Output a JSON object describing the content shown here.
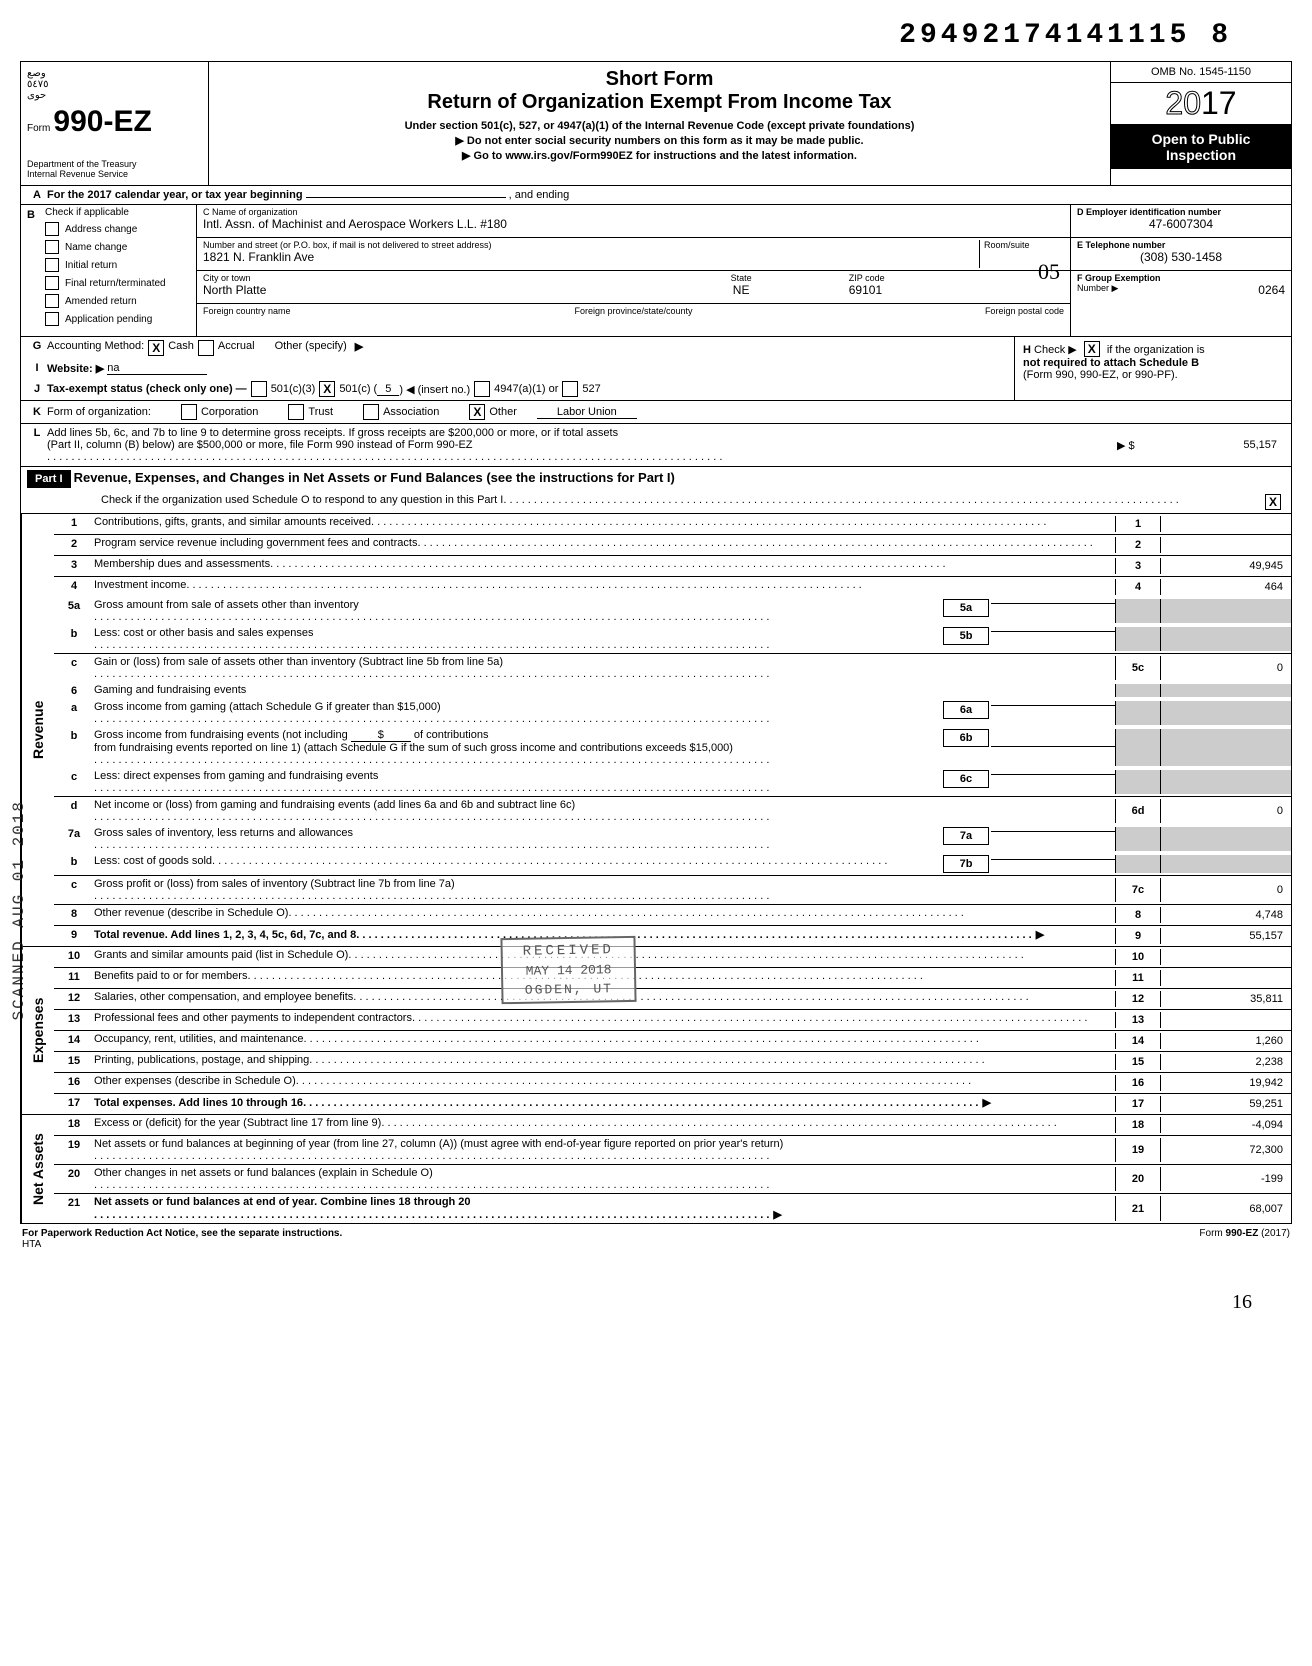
{
  "doc_id": "29492174141115 8",
  "form": {
    "number": "990-EZ",
    "prefix": "Form",
    "department": "Department of the Treasury",
    "irs": "Internal Revenue Service"
  },
  "title": {
    "line1": "Short Form",
    "line2": "Return of Organization Exempt From Income Tax",
    "note1": "Under section 501(c), 527, or 4947(a)(1) of the Internal Revenue Code (except private foundations)",
    "note2": "Do not enter social security numbers on this form as it may be made public.",
    "note3": "Go to www.irs.gov/Form990EZ for instructions and the latest information."
  },
  "right": {
    "omb": "OMB No. 1545-1150",
    "year_outline": "20",
    "year_bold": "17",
    "open1": "Open to Public",
    "open2": "Inspection"
  },
  "line_a": "For the 2017 calendar year, or tax year beginning",
  "line_a_end": ", and ending",
  "section_b": {
    "header": "Check if applicable",
    "items": [
      "Address change",
      "Name change",
      "Initial return",
      "Final return/terminated",
      "Amended return",
      "Application pending"
    ]
  },
  "section_c": {
    "name_label": "C  Name of organization",
    "name": "Intl. Assn. of Machinist and Aerospace Workers L.L. #180",
    "street_label": "Number and street (or P.O. box, if mail is not delivered to street address)",
    "room_label": "Room/suite",
    "street": "1821 N. Franklin Ave",
    "city_label": "City or town",
    "state_label": "State",
    "zip_label": "ZIP code",
    "city": "North Platte",
    "state": "NE",
    "zip": "69101",
    "foreign_country": "Foreign country name",
    "foreign_province": "Foreign province/state/county",
    "foreign_postal": "Foreign postal code",
    "handwritten": "05"
  },
  "section_d": {
    "ein_label": "D  Employer identification number",
    "ein": "47-6007304",
    "phone_label": "E  Telephone number",
    "phone": "(308) 530-1458",
    "group_label": "F  Group Exemption",
    "group_label2": "Number ▶",
    "group": "0264"
  },
  "line_g": {
    "label": "Accounting Method:",
    "opt1": "Cash",
    "opt2": "Accrual",
    "opt3": "Other (specify)"
  },
  "line_h": {
    "text1": "Check ▶",
    "text2": "if the organization is",
    "text3": "not required to attach Schedule B",
    "text4": "(Form 990, 990-EZ, or 990-PF)."
  },
  "line_i": {
    "label": "Website: ▶",
    "value": "na"
  },
  "line_j": {
    "label": "Tax-exempt status (check only one) —",
    "opt1": "501(c)(3)",
    "opt2": "501(c) (",
    "opt2_val": "5",
    "opt2_end": ") ◀ (insert no.)",
    "opt3": "4947(a)(1) or",
    "opt4": "527"
  },
  "line_k": {
    "label": "Form of organization:",
    "opt1": "Corporation",
    "opt2": "Trust",
    "opt3": "Association",
    "opt4": "Other",
    "value": "Labor Union"
  },
  "line_l": {
    "text1": "Add lines 5b, 6c, and 7b to line 9 to determine gross receipts. If gross receipts are $200,000 or more, or if total assets",
    "text2": "(Part II, column (B) below) are $500,000 or more, file Form 990 instead of Form 990-EZ",
    "arrow": "▶ $",
    "value": "55,157"
  },
  "part1": {
    "label": "Part I",
    "title": "Revenue, Expenses, and Changes in Net Assets or Fund Balances (see the instructions for Part I)",
    "check_text": "Check if the organization used Schedule O to respond to any question in this Part I"
  },
  "sections": {
    "revenue": "Revenue",
    "expenses": "Expenses",
    "netassets": "Net Assets"
  },
  "lines": {
    "l1": {
      "num": "1",
      "text": "Contributions, gifts, grants, and similar amounts received",
      "box": "1",
      "val": ""
    },
    "l2": {
      "num": "2",
      "text": "Program service revenue including government fees and contracts",
      "box": "2",
      "val": ""
    },
    "l3": {
      "num": "3",
      "text": "Membership dues and assessments",
      "box": "3",
      "val": "49,945"
    },
    "l4": {
      "num": "4",
      "text": "Investment income",
      "box": "4",
      "val": "464"
    },
    "l5a": {
      "num": "5a",
      "text": "Gross amount from sale of assets other than inventory",
      "mid": "5a"
    },
    "l5b": {
      "num": "b",
      "text": "Less: cost or other basis and sales expenses",
      "mid": "5b"
    },
    "l5c": {
      "num": "c",
      "text": "Gain or (loss) from sale of assets other than inventory (Subtract line 5b from line 5a)",
      "box": "5c",
      "val": "0"
    },
    "l6": {
      "num": "6",
      "text": "Gaming and fundraising events"
    },
    "l6a": {
      "num": "a",
      "text": "Gross income from gaming (attach Schedule G if greater than $15,000)",
      "mid": "6a"
    },
    "l6b": {
      "num": "b",
      "text1": "Gross income from fundraising events (not including",
      "text2": "of contributions",
      "text3": "from fundraising events reported on line 1) (attach Schedule G if the sum of such gross income and contributions exceeds $15,000)",
      "mid": "6b"
    },
    "l6c": {
      "num": "c",
      "text": "Less: direct expenses from gaming and fundraising events",
      "mid": "6c"
    },
    "l6d": {
      "num": "d",
      "text": "Net income or (loss) from gaming and fundraising events (add lines 6a and 6b and subtract line 6c)",
      "box": "6d",
      "val": "0"
    },
    "l7a": {
      "num": "7a",
      "text": "Gross sales of inventory, less returns and allowances",
      "mid": "7a"
    },
    "l7b": {
      "num": "b",
      "text": "Less: cost of goods sold",
      "mid": "7b"
    },
    "l7c": {
      "num": "c",
      "text": "Gross profit or (loss) from sales of inventory (Subtract line 7b from line 7a)",
      "box": "7c",
      "val": "0"
    },
    "l8": {
      "num": "8",
      "text": "Other revenue (describe in Schedule O)",
      "box": "8",
      "val": "4,748"
    },
    "l9": {
      "num": "9",
      "text": "Total revenue. Add lines 1, 2, 3, 4, 5c, 6d, 7c, and 8",
      "box": "9",
      "val": "55,157"
    },
    "l10": {
      "num": "10",
      "text": "Grants and similar amounts paid (list in Schedule O)",
      "box": "10",
      "val": ""
    },
    "l11": {
      "num": "11",
      "text": "Benefits paid to or for members",
      "box": "11",
      "val": ""
    },
    "l12": {
      "num": "12",
      "text": "Salaries, other compensation, and employee benefits",
      "box": "12",
      "val": "35,811"
    },
    "l13": {
      "num": "13",
      "text": "Professional fees and other payments to independent contractors",
      "box": "13",
      "val": ""
    },
    "l14": {
      "num": "14",
      "text": "Occupancy, rent, utilities, and maintenance",
      "box": "14",
      "val": "1,260"
    },
    "l15": {
      "num": "15",
      "text": "Printing, publications, postage, and shipping",
      "box": "15",
      "val": "2,238"
    },
    "l16": {
      "num": "16",
      "text": "Other expenses (describe in Schedule O)",
      "box": "16",
      "val": "19,942"
    },
    "l17": {
      "num": "17",
      "text": "Total expenses. Add lines 10 through 16",
      "box": "17",
      "val": "59,251"
    },
    "l18": {
      "num": "18",
      "text": "Excess or (deficit) for the year (Subtract line 17 from line 9)",
      "box": "18",
      "val": "-4,094"
    },
    "l19": {
      "num": "19",
      "text": "Net assets or fund balances at beginning of year (from line 27, column (A)) (must agree with end-of-year figure reported on prior year's return)",
      "box": "19",
      "val": "72,300"
    },
    "l20": {
      "num": "20",
      "text": "Other changes in net assets or fund balances (explain in Schedule O)",
      "box": "20",
      "val": "-199"
    },
    "l21": {
      "num": "21",
      "text": "Net assets or fund balances at end of year. Combine lines 18 through 20",
      "box": "21",
      "val": "68,007"
    }
  },
  "stamp": {
    "received": "RECEIVED",
    "date": "MAY 14 2018",
    "location": "OGDEN, UT"
  },
  "side_stamp": "SCANNED AUG 01 2018",
  "footer": {
    "left": "For Paperwork Reduction Act Notice, see the separate instructions.",
    "hta": "HTA",
    "right": "Form 990-EZ (2017)"
  },
  "page_corner": "16"
}
